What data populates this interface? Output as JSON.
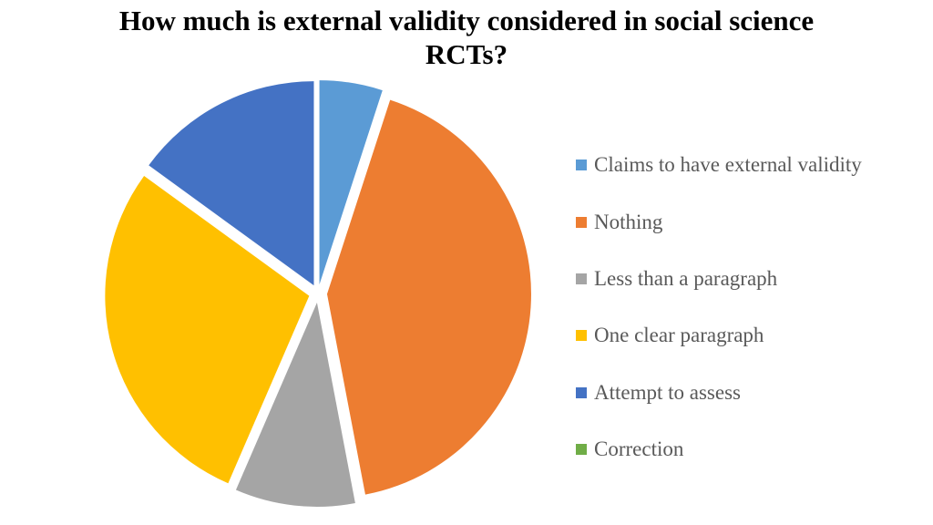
{
  "chart_data": {
    "type": "pie",
    "title_lines": [
      "How much is external validity considered in social science",
      "RCTs?"
    ],
    "categories": [
      "Claims to have external validity",
      "Nothing",
      "Less than a paragraph",
      "One clear paragraph",
      "Attempt to assess",
      "Correction"
    ],
    "values": [
      5,
      42,
      9.5,
      28.5,
      15,
      0
    ],
    "colors": [
      "#5B9BD5",
      "#ED7D31",
      "#A5A5A5",
      "#FFC000",
      "#4472C4",
      "#70AD47"
    ],
    "exploded": true,
    "legend_position": "right"
  }
}
